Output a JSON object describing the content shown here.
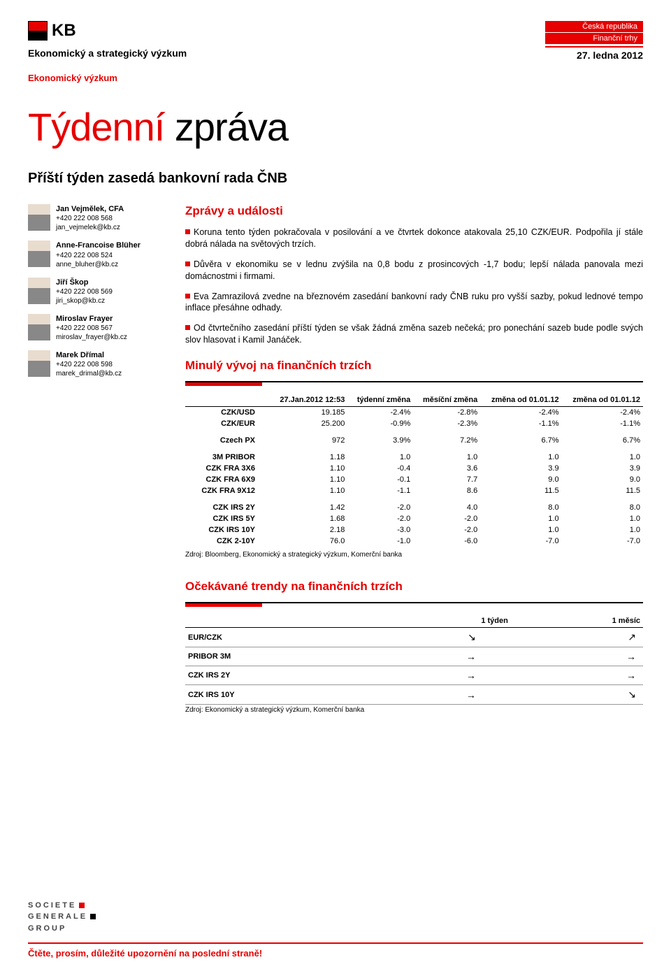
{
  "header": {
    "logo_text": "KB",
    "department": "Ekonomický a strategický výzkum",
    "subdepartment": "Ekonomický výzkum",
    "country_tag": "Česká republika",
    "market_tag": "Finanční trhy",
    "date": "27. ledna 2012"
  },
  "title": {
    "word1": "Týdenní",
    "word2": "zpráva"
  },
  "subtitle": "Příští týden zasedá bankovní rada ČNB",
  "authors": [
    {
      "name": "Jan Vejmělek, CFA",
      "phone": "+420 222 008 568",
      "email": "jan_vejmelek@kb.cz"
    },
    {
      "name": "Anne-Francoise Blüher",
      "phone": "+420 222 008 524",
      "email": "anne_bluher@kb.cz"
    },
    {
      "name": "Jiří Škop",
      "phone": "+420 222 008 569",
      "email": "jiri_skop@kb.cz"
    },
    {
      "name": "Miroslav Frayer",
      "phone": "+420 222 008 567",
      "email": "miroslav_frayer@kb.cz"
    },
    {
      "name": "Marek Dřímal",
      "phone": "+420 222 008 598",
      "email": "marek_drimal@kb.cz"
    }
  ],
  "news": {
    "heading": "Zprávy a události",
    "items": [
      "Koruna tento týden pokračovala v posilování a ve čtvrtek dokonce atakovala 25,10 CZK/EUR. Podpořila jí stále dobrá nálada na světových trzích.",
      "Důvěra v ekonomiku se v lednu zvýšila na 0,8 bodu z prosincových -1,7 bodu; lepší nálada panovala mezi domácnostmi i firmami.",
      "Eva Zamrazilová zvedne na březnovém zasedání bankovní rady ČNB ruku pro vyšší sazby, pokud lednové tempo inflace přesáhne odhady.",
      "Od čtvrtečního zasedání příští týden se však žádná změna sazeb nečeká; pro ponechání sazeb bude podle svých slov hlasovat i Kamil Janáček."
    ]
  },
  "market_dev": {
    "heading": "Minulý vývoj na finančních trzích",
    "columns": [
      "",
      "27.Jan.2012 12:53",
      "týdenní změna",
      "měsíční změna",
      "změna od 01.01.12",
      "změna od 01.01.12"
    ],
    "groups": [
      [
        [
          "CZK/USD",
          "19.185",
          "-2.4%",
          "-2.8%",
          "-2.4%",
          "-2.4%"
        ],
        [
          "CZK/EUR",
          "25.200",
          "-0.9%",
          "-2.3%",
          "-1.1%",
          "-1.1%"
        ]
      ],
      [
        [
          "Czech PX",
          "972",
          "3.9%",
          "7.2%",
          "6.7%",
          "6.7%"
        ]
      ],
      [
        [
          "3M PRIBOR",
          "1.18",
          "1.0",
          "1.0",
          "1.0",
          "1.0"
        ],
        [
          "CZK FRA 3X6",
          "1.10",
          "-0.4",
          "3.6",
          "3.9",
          "3.9"
        ],
        [
          "CZK FRA 6X9",
          "1.10",
          "-0.1",
          "7.7",
          "9.0",
          "9.0"
        ],
        [
          "CZK FRA 9X12",
          "1.10",
          "-1.1",
          "8.6",
          "11.5",
          "11.5"
        ]
      ],
      [
        [
          "CZK IRS 2Y",
          "1.42",
          "-2.0",
          "4.0",
          "8.0",
          "8.0"
        ],
        [
          "CZK IRS 5Y",
          "1.68",
          "-2.0",
          "-2.0",
          "1.0",
          "1.0"
        ],
        [
          "CZK IRS 10Y",
          "2.18",
          "-3.0",
          "-2.0",
          "1.0",
          "1.0"
        ],
        [
          "CZK 2-10Y",
          "76.0",
          "-1.0",
          "-6.0",
          "-7.0",
          "-7.0"
        ]
      ]
    ],
    "source": "Zdroj: Bloomberg, Ekonomický a strategický výzkum, Komerční banka"
  },
  "trends": {
    "heading": "Očekávané trendy na finančních trzích",
    "columns": [
      "",
      "1 týden",
      "1 měsíc"
    ],
    "rows": [
      [
        "EUR/CZK",
        "↘",
        "↗"
      ],
      [
        "PRIBOR 3M",
        "→",
        "→"
      ],
      [
        "CZK IRS 2Y",
        "→",
        "→"
      ],
      [
        "CZK IRS 10Y",
        "→",
        "↘"
      ]
    ],
    "source": "Zdroj: Ekonomický a strategický výzkum, Komerční banka"
  },
  "footer": {
    "sg_line1": "SOCIETE",
    "sg_line2": "GENERALE",
    "sg_line3": "GROUP",
    "disclaimer": "Čtěte, prosím, důležité upozornění na poslední straně!"
  }
}
